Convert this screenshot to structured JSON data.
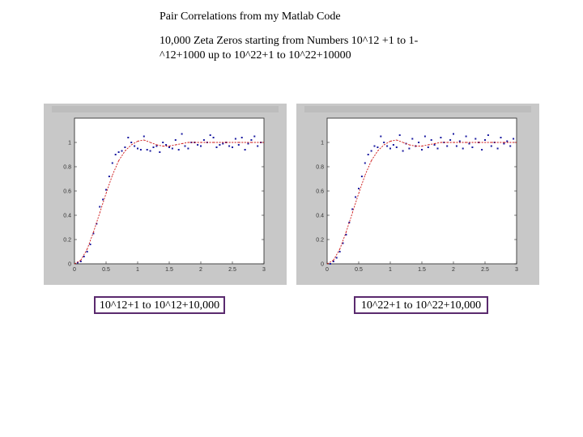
{
  "page": {
    "title": "Pair Correlations from my Matlab Code",
    "subtitle": "10,000 Zeta Zeros starting from Numbers 10^12 +1 to 1-^12+1000  up to 10^22+1 to 10^22+10000"
  },
  "chart_data": [
    {
      "type": "scatter",
      "caption": "10^12+1 to 10^12+10,000",
      "xlim": [
        0,
        3
      ],
      "ylim": [
        0,
        1.2
      ],
      "xticks": [
        0,
        0.5,
        1,
        1.5,
        2,
        2.5,
        3
      ],
      "yticks": [
        0,
        0.2,
        0.4,
        0.6,
        0.8,
        1
      ],
      "xticklabels": [
        "0",
        "0.5",
        "1",
        "1.5",
        "2",
        "2.5",
        "3"
      ],
      "yticklabels": [
        "0",
        "0.2",
        "0.4",
        "0.6",
        "0.8",
        "1"
      ],
      "grid": false,
      "series": [
        {
          "kind": "points",
          "color": "#1a1aa0",
          "x": [
            0.05,
            0.1,
            0.15,
            0.2,
            0.25,
            0.3,
            0.35,
            0.4,
            0.45,
            0.5,
            0.55,
            0.6,
            0.65,
            0.7,
            0.75,
            0.8,
            0.85,
            0.9,
            0.95,
            1.0,
            1.05,
            1.1,
            1.15,
            1.2,
            1.25,
            1.3,
            1.35,
            1.4,
            1.45,
            1.5,
            1.55,
            1.6,
            1.65,
            1.7,
            1.75,
            1.8,
            1.85,
            1.9,
            1.95,
            2.0,
            2.05,
            2.1,
            2.15,
            2.2,
            2.25,
            2.3,
            2.35,
            2.4,
            2.45,
            2.5,
            2.55,
            2.6,
            2.65,
            2.7,
            2.75,
            2.8,
            2.85,
            2.9,
            2.95
          ],
          "y": [
            0.01,
            0.02,
            0.06,
            0.1,
            0.16,
            0.25,
            0.33,
            0.47,
            0.53,
            0.61,
            0.72,
            0.83,
            0.9,
            0.92,
            0.93,
            0.96,
            1.04,
            1.0,
            0.97,
            0.95,
            0.94,
            1.05,
            0.94,
            0.93,
            0.96,
            0.97,
            0.92,
            1.0,
            0.98,
            0.96,
            0.95,
            1.02,
            0.94,
            1.07,
            0.97,
            0.95,
            1.0,
            1.0,
            0.98,
            0.97,
            1.02,
            1.0,
            1.06,
            1.04,
            0.96,
            0.98,
            0.99,
            1.0,
            0.97,
            0.96,
            1.03,
            0.98,
            1.04,
            0.94,
            0.99,
            1.02,
            1.05,
            0.97,
            1.0
          ]
        },
        {
          "kind": "line",
          "color": "#cc1111",
          "x": [
            0,
            0.1,
            0.2,
            0.3,
            0.4,
            0.5,
            0.6,
            0.7,
            0.8,
            0.9,
            1.0,
            1.1,
            1.2,
            1.3,
            1.4,
            1.5,
            1.6,
            1.7,
            1.8,
            1.9,
            2.0,
            2.2,
            2.4,
            2.6,
            2.8,
            3.0
          ],
          "y": [
            0,
            0.03,
            0.12,
            0.26,
            0.42,
            0.58,
            0.73,
            0.85,
            0.93,
            0.98,
            1.01,
            1.02,
            1.0,
            0.98,
            0.97,
            0.97,
            0.98,
            0.99,
            1.0,
            1.0,
            1.0,
            1.0,
            1.0,
            1.0,
            1.0,
            1.0
          ]
        }
      ]
    },
    {
      "type": "scatter",
      "caption": "10^22+1 to 10^22+10,000",
      "xlim": [
        0,
        3
      ],
      "ylim": [
        0,
        1.2
      ],
      "xticks": [
        0,
        0.5,
        1,
        1.5,
        2,
        2.5,
        3
      ],
      "yticks": [
        0,
        0.2,
        0.4,
        0.6,
        0.8,
        1
      ],
      "xticklabels": [
        "0",
        "0.5",
        "1",
        "1.5",
        "2",
        "2.5",
        "3"
      ],
      "yticklabels": [
        "0",
        "0.2",
        "0.4",
        "0.6",
        "0.8",
        "1"
      ],
      "grid": false,
      "series": [
        {
          "kind": "points",
          "color": "#1a1aa0",
          "x": [
            0.05,
            0.1,
            0.15,
            0.2,
            0.25,
            0.3,
            0.35,
            0.4,
            0.45,
            0.5,
            0.55,
            0.6,
            0.65,
            0.7,
            0.75,
            0.8,
            0.85,
            0.9,
            0.95,
            1.0,
            1.05,
            1.1,
            1.15,
            1.2,
            1.25,
            1.3,
            1.35,
            1.4,
            1.45,
            1.5,
            1.55,
            1.6,
            1.65,
            1.7,
            1.75,
            1.8,
            1.85,
            1.9,
            1.95,
            2.0,
            2.05,
            2.1,
            2.15,
            2.2,
            2.25,
            2.3,
            2.35,
            2.4,
            2.45,
            2.5,
            2.55,
            2.6,
            2.65,
            2.7,
            2.75,
            2.8,
            2.85,
            2.9,
            2.95
          ],
          "y": [
            0.0,
            0.02,
            0.05,
            0.1,
            0.17,
            0.24,
            0.34,
            0.45,
            0.55,
            0.62,
            0.72,
            0.83,
            0.9,
            0.93,
            0.97,
            0.96,
            1.05,
            1.0,
            0.97,
            0.95,
            0.98,
            0.96,
            1.06,
            0.93,
            0.99,
            0.95,
            1.03,
            0.97,
            1.0,
            0.94,
            1.05,
            0.96,
            1.02,
            0.98,
            0.95,
            1.04,
            1.0,
            0.97,
            1.02,
            1.07,
            0.97,
            1.01,
            0.95,
            1.05,
            0.99,
            0.96,
            1.03,
            1.0,
            0.94,
            1.02,
            1.06,
            0.97,
            1.0,
            0.95,
            1.04,
            0.99,
            1.01,
            0.97,
            1.03
          ]
        },
        {
          "kind": "line",
          "color": "#cc1111",
          "x": [
            0,
            0.1,
            0.2,
            0.3,
            0.4,
            0.5,
            0.6,
            0.7,
            0.8,
            0.9,
            1.0,
            1.1,
            1.2,
            1.3,
            1.4,
            1.5,
            1.6,
            1.7,
            1.8,
            1.9,
            2.0,
            2.2,
            2.4,
            2.6,
            2.8,
            3.0
          ],
          "y": [
            0,
            0.03,
            0.12,
            0.26,
            0.42,
            0.58,
            0.73,
            0.85,
            0.93,
            0.98,
            1.01,
            1.02,
            1.0,
            0.98,
            0.97,
            0.97,
            0.98,
            0.99,
            1.0,
            1.0,
            1.0,
            1.0,
            1.0,
            1.0,
            1.0,
            1.0
          ]
        }
      ]
    }
  ]
}
